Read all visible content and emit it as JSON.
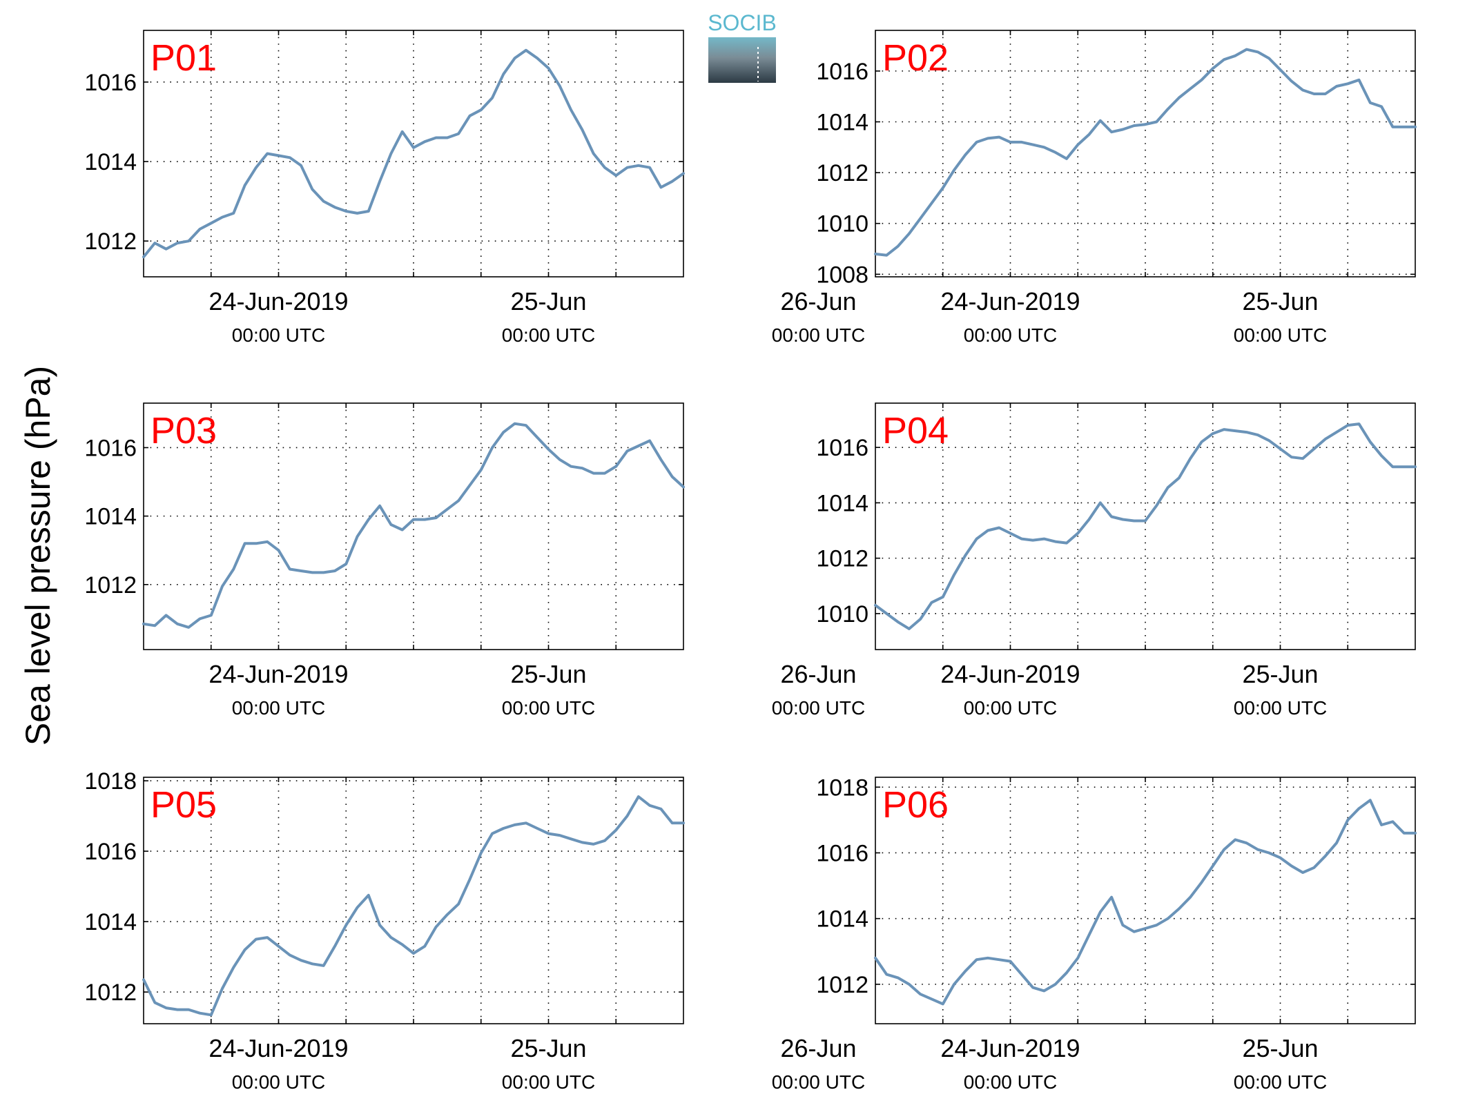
{
  "figure": {
    "ylabel": "Sea level pressure (hPa)",
    "logo_text": "SOCIB",
    "line_color": "#6a93b8",
    "panel_label_color": "#ff0000"
  },
  "chart_data": [
    {
      "type": "line",
      "panel": "P01",
      "xlabel": "",
      "ylabel": "",
      "x_unit": "hours since 24-Jun-2019 00:00 UTC",
      "xlim": [
        -12,
        36
      ],
      "ylim": [
        1011.1,
        1017.3
      ],
      "yticks": [
        1012,
        1014,
        1016
      ],
      "xticks": [
        0,
        24,
        48
      ],
      "xtick_labels": [
        [
          "24-Jun-2019",
          "00:00 UTC"
        ],
        [
          "25-Jun",
          "00:00 UTC"
        ],
        [
          "26-Jun",
          "00:00 UTC"
        ]
      ],
      "grid": true,
      "series": [
        {
          "x": [
            -12,
            -11,
            -10,
            -9,
            -8,
            -7,
            -6,
            -5,
            -4,
            -3,
            -2,
            -1,
            0,
            1,
            2,
            3,
            4,
            5,
            6,
            7,
            8,
            9,
            10,
            11,
            12,
            13,
            14,
            15,
            16,
            17,
            18,
            19,
            20,
            21,
            22,
            23,
            24,
            25,
            26,
            27,
            28,
            29,
            30,
            31,
            32,
            33,
            34,
            35,
            36
          ],
          "y": [
            1011.6,
            1011.95,
            1011.8,
            1011.95,
            1012.0,
            1012.3,
            1012.45,
            1012.6,
            1012.7,
            1013.4,
            1013.85,
            1014.2,
            1014.15,
            1014.1,
            1013.9,
            1013.3,
            1013.0,
            1012.85,
            1012.75,
            1012.7,
            1012.75,
            1013.5,
            1014.2,
            1014.75,
            1014.35,
            1014.5,
            1014.6,
            1014.6,
            1014.7,
            1015.15,
            1015.3,
            1015.6,
            1016.2,
            1016.6,
            1016.8,
            1016.6,
            1016.35,
            1015.9,
            1015.3,
            1014.8,
            1014.2,
            1013.85,
            1013.65,
            1013.85,
            1013.9,
            1013.85,
            1013.35,
            1013.5,
            1013.7
          ]
        }
      ]
    },
    {
      "type": "line",
      "panel": "P02",
      "xlabel": "",
      "ylabel": "",
      "x_unit": "hours since 24-Jun-2019 00:00 UTC",
      "xlim": [
        -12,
        36
      ],
      "ylim": [
        1007.9,
        1017.6
      ],
      "yticks": [
        1008,
        1010,
        1012,
        1014,
        1016
      ],
      "xticks": [
        0,
        24,
        48
      ],
      "xtick_labels": [
        [
          "24-Jun-2019",
          "00:00 UTC"
        ],
        [
          "25-Jun",
          "00:00 UTC"
        ],
        [
          "26-Jun",
          "00:00 UTC"
        ]
      ],
      "grid": true,
      "series": [
        {
          "x": [
            -12,
            -11,
            -10,
            -9,
            -8,
            -7,
            -6,
            -5,
            -4,
            -3,
            -2,
            -1,
            0,
            1,
            2,
            3,
            4,
            5,
            6,
            7,
            8,
            9,
            10,
            11,
            12,
            13,
            14,
            15,
            16,
            17,
            18,
            19,
            20,
            21,
            22,
            23,
            24,
            25,
            26,
            27,
            28,
            29,
            30,
            31,
            32,
            33,
            34,
            35,
            36
          ],
          "y": [
            1008.8,
            1008.75,
            1009.1,
            1009.6,
            1010.2,
            1010.8,
            1011.4,
            1012.1,
            1012.7,
            1013.2,
            1013.35,
            1013.4,
            1013.2,
            1013.2,
            1013.1,
            1013.0,
            1012.8,
            1012.55,
            1013.1,
            1013.5,
            1014.05,
            1013.6,
            1013.7,
            1013.85,
            1013.9,
            1014.0,
            1014.5,
            1014.95,
            1015.3,
            1015.65,
            1016.1,
            1016.45,
            1016.6,
            1016.85,
            1016.75,
            1016.5,
            1016.05,
            1015.6,
            1015.25,
            1015.1,
            1015.1,
            1015.4,
            1015.5,
            1015.65,
            1014.75,
            1014.6,
            1013.8,
            1013.8,
            1013.8
          ]
        }
      ]
    },
    {
      "type": "line",
      "panel": "P03",
      "xlabel": "",
      "ylabel": "",
      "x_unit": "hours since 24-Jun-2019 00:00 UTC",
      "xlim": [
        -12,
        36
      ],
      "ylim": [
        1010.1,
        1017.3
      ],
      "yticks": [
        1012,
        1014,
        1016
      ],
      "xticks": [
        0,
        24,
        48
      ],
      "xtick_labels": [
        [
          "24-Jun-2019",
          "00:00 UTC"
        ],
        [
          "25-Jun",
          "00:00 UTC"
        ],
        [
          "26-Jun",
          "00:00 UTC"
        ]
      ],
      "grid": true,
      "series": [
        {
          "x": [
            -12,
            -11,
            -10,
            -9,
            -8,
            -7,
            -6,
            -5,
            -4,
            -3,
            -2,
            -1,
            0,
            1,
            2,
            3,
            4,
            5,
            6,
            7,
            8,
            9,
            10,
            11,
            12,
            13,
            14,
            15,
            16,
            17,
            18,
            19,
            20,
            21,
            22,
            23,
            24,
            25,
            26,
            27,
            28,
            29,
            30,
            31,
            32,
            33,
            34,
            35,
            36
          ],
          "y": [
            1010.85,
            1010.8,
            1011.1,
            1010.85,
            1010.75,
            1011.0,
            1011.1,
            1011.95,
            1012.45,
            1013.2,
            1013.2,
            1013.25,
            1013.0,
            1012.45,
            1012.4,
            1012.35,
            1012.35,
            1012.4,
            1012.6,
            1013.4,
            1013.9,
            1014.3,
            1013.75,
            1013.6,
            1013.9,
            1013.9,
            1013.95,
            1014.2,
            1014.45,
            1014.9,
            1015.35,
            1016.0,
            1016.45,
            1016.7,
            1016.65,
            1016.3,
            1015.95,
            1015.65,
            1015.45,
            1015.4,
            1015.25,
            1015.25,
            1015.45,
            1015.9,
            1016.05,
            1016.2,
            1015.65,
            1015.15,
            1014.85
          ]
        }
      ]
    },
    {
      "type": "line",
      "panel": "P04",
      "xlabel": "",
      "ylabel": "",
      "x_unit": "hours since 24-Jun-2019 00:00 UTC",
      "xlim": [
        -12,
        36
      ],
      "ylim": [
        1008.7,
        1017.6
      ],
      "yticks": [
        1010,
        1012,
        1014,
        1016
      ],
      "xticks": [
        0,
        24,
        48
      ],
      "xtick_labels": [
        [
          "24-Jun-2019",
          "00:00 UTC"
        ],
        [
          "25-Jun",
          "00:00 UTC"
        ],
        [
          "26-Jun",
          "00:00 UTC"
        ]
      ],
      "grid": true,
      "series": [
        {
          "x": [
            -12,
            -11,
            -10,
            -9,
            -8,
            -7,
            -6,
            -5,
            -4,
            -3,
            -2,
            -1,
            0,
            1,
            2,
            3,
            4,
            5,
            6,
            7,
            8,
            9,
            10,
            11,
            12,
            13,
            14,
            15,
            16,
            17,
            18,
            19,
            20,
            21,
            22,
            23,
            24,
            25,
            26,
            27,
            28,
            29,
            30,
            31,
            32,
            33,
            34,
            35,
            36
          ],
          "y": [
            1010.3,
            1010.0,
            1009.7,
            1009.45,
            1009.8,
            1010.4,
            1010.6,
            1011.4,
            1012.1,
            1012.7,
            1013.0,
            1013.1,
            1012.9,
            1012.7,
            1012.65,
            1012.7,
            1012.6,
            1012.55,
            1012.9,
            1013.4,
            1014.0,
            1013.5,
            1013.4,
            1013.35,
            1013.35,
            1013.9,
            1014.55,
            1014.9,
            1015.6,
            1016.2,
            1016.5,
            1016.65,
            1016.6,
            1016.55,
            1016.45,
            1016.25,
            1015.95,
            1015.65,
            1015.6,
            1015.95,
            1016.3,
            1016.55,
            1016.8,
            1016.85,
            1016.2,
            1015.7,
            1015.3,
            1015.3,
            1015.3
          ]
        }
      ]
    },
    {
      "type": "line",
      "panel": "P05",
      "xlabel": "",
      "ylabel": "",
      "x_unit": "hours since 24-Jun-2019 00:00 UTC",
      "xlim": [
        -12,
        36
      ],
      "ylim": [
        1011.1,
        1018.1
      ],
      "yticks": [
        1012,
        1014,
        1016,
        1018
      ],
      "xticks": [
        0,
        24,
        48
      ],
      "xtick_labels": [
        [
          "24-Jun-2019",
          "00:00 UTC"
        ],
        [
          "25-Jun",
          "00:00 UTC"
        ],
        [
          "26-Jun",
          "00:00 UTC"
        ]
      ],
      "grid": true,
      "series": [
        {
          "x": [
            -12,
            -11,
            -10,
            -9,
            -8,
            -7,
            -6,
            -5,
            -4,
            -3,
            -2,
            -1,
            0,
            1,
            2,
            3,
            4,
            5,
            6,
            7,
            8,
            9,
            10,
            11,
            12,
            13,
            14,
            15,
            16,
            17,
            18,
            19,
            20,
            21,
            22,
            23,
            24,
            25,
            26,
            27,
            28,
            29,
            30,
            31,
            32,
            33,
            34,
            35,
            36
          ],
          "y": [
            1012.35,
            1011.7,
            1011.55,
            1011.5,
            1011.5,
            1011.4,
            1011.35,
            1012.1,
            1012.7,
            1013.2,
            1013.5,
            1013.55,
            1013.3,
            1013.05,
            1012.9,
            1012.8,
            1012.75,
            1013.3,
            1013.9,
            1014.4,
            1014.75,
            1013.9,
            1013.55,
            1013.35,
            1013.1,
            1013.3,
            1013.85,
            1014.2,
            1014.5,
            1015.2,
            1015.95,
            1016.5,
            1016.65,
            1016.75,
            1016.8,
            1016.65,
            1016.5,
            1016.45,
            1016.35,
            1016.25,
            1016.2,
            1016.3,
            1016.6,
            1017.0,
            1017.55,
            1017.3,
            1017.2,
            1016.8,
            1016.8
          ]
        }
      ]
    },
    {
      "type": "line",
      "panel": "P06",
      "xlabel": "",
      "ylabel": "",
      "x_unit": "hours since 24-Jun-2019 00:00 UTC",
      "xlim": [
        -12,
        36
      ],
      "ylim": [
        1010.8,
        1018.3
      ],
      "yticks": [
        1012,
        1014,
        1016,
        1018
      ],
      "xticks": [
        0,
        24,
        48
      ],
      "xtick_labels": [
        [
          "24-Jun-2019",
          "00:00 UTC"
        ],
        [
          "25-Jun",
          "00:00 UTC"
        ],
        [
          "26-Jun",
          "00:00 UTC"
        ]
      ],
      "grid": true,
      "series": [
        {
          "x": [
            -12,
            -11,
            -10,
            -9,
            -8,
            -7,
            -6,
            -5,
            -4,
            -3,
            -2,
            -1,
            0,
            1,
            2,
            3,
            4,
            5,
            6,
            7,
            8,
            9,
            10,
            11,
            12,
            13,
            14,
            15,
            16,
            17,
            18,
            19,
            20,
            21,
            22,
            23,
            24,
            25,
            26,
            27,
            28,
            29,
            30,
            31,
            32,
            33,
            34,
            35,
            36
          ],
          "y": [
            1012.8,
            1012.3,
            1012.2,
            1012.0,
            1011.7,
            1011.55,
            1011.4,
            1012.0,
            1012.4,
            1012.75,
            1012.8,
            1012.75,
            1012.7,
            1012.3,
            1011.9,
            1011.8,
            1012.0,
            1012.35,
            1012.8,
            1013.5,
            1014.2,
            1014.65,
            1013.8,
            1013.6,
            1013.7,
            1013.8,
            1014.0,
            1014.3,
            1014.65,
            1015.1,
            1015.6,
            1016.1,
            1016.4,
            1016.3,
            1016.1,
            1016.0,
            1015.85,
            1015.6,
            1015.4,
            1015.55,
            1015.9,
            1016.3,
            1017.0,
            1017.35,
            1017.6,
            1016.85,
            1016.95,
            1016.6,
            1016.6
          ]
        }
      ]
    }
  ]
}
